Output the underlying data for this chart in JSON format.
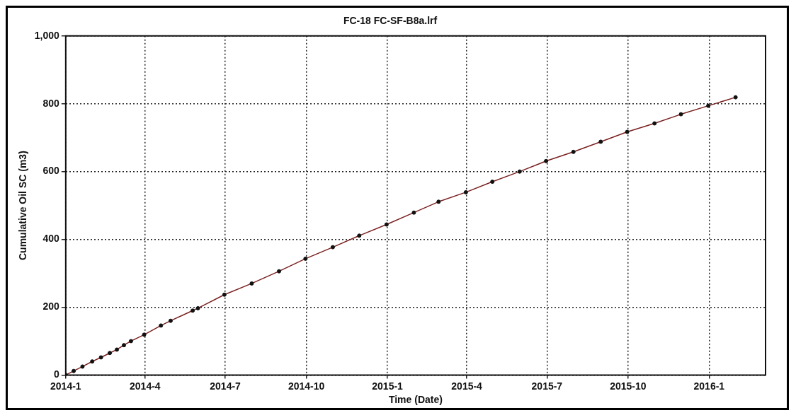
{
  "chart_data": {
    "type": "line",
    "title": "FC-18 FC-SF-B8a.lrf",
    "xlabel": "Time (Date)",
    "ylabel": "Cumulative Oil SC (m3)",
    "x": [
      "2014-01-01",
      "2014-01-10",
      "2014-01-20",
      "2014-01-31",
      "2014-02-10",
      "2014-02-20",
      "2014-02-28",
      "2014-03-08",
      "2014-03-16",
      "2014-03-31",
      "2014-04-19",
      "2014-04-30",
      "2014-05-25",
      "2014-05-31",
      "2014-06-30",
      "2014-07-31",
      "2014-08-31",
      "2014-09-30",
      "2014-10-31",
      "2014-11-30",
      "2014-12-31",
      "2015-01-31",
      "2015-02-28",
      "2015-03-31",
      "2015-04-30",
      "2015-05-31",
      "2015-06-30",
      "2015-07-31",
      "2015-08-31",
      "2015-09-30",
      "2015-10-31",
      "2015-11-30",
      "2015-12-31",
      "2016-01-31"
    ],
    "series": [
      {
        "color": "#7a2020",
        "marker": "none",
        "values": [
          0,
          12,
          25,
          40,
          52,
          65,
          75,
          88,
          100,
          119,
          146,
          160,
          190,
          197,
          237,
          270,
          306,
          343,
          377,
          411,
          444,
          479,
          511,
          539,
          570,
          600,
          631,
          658,
          688,
          717,
          742,
          769,
          794,
          819
        ]
      },
      {
        "type": "scatter",
        "color": "#111111",
        "marker": "circle",
        "values": [
          0,
          12,
          25,
          40,
          52,
          65,
          75,
          88,
          100,
          119,
          146,
          160,
          190,
          197,
          237,
          270,
          306,
          343,
          377,
          411,
          444,
          479,
          511,
          539,
          570,
          600,
          631,
          658,
          688,
          717,
          742,
          769,
          794,
          819
        ]
      }
    ],
    "xlim": [
      "2014-01-01",
      "2016-03-05"
    ],
    "xticks": [
      {
        "value": "2014-01-01",
        "label": "2014-1"
      },
      {
        "value": "2014-04-01",
        "label": "2014-4"
      },
      {
        "value": "2014-07-01",
        "label": "2014-7"
      },
      {
        "value": "2014-10-01",
        "label": "2014-10"
      },
      {
        "value": "2015-01-01",
        "label": "2015-1"
      },
      {
        "value": "2015-04-01",
        "label": "2015-4"
      },
      {
        "value": "2015-07-01",
        "label": "2015-7"
      },
      {
        "value": "2015-10-01",
        "label": "2015-10"
      },
      {
        "value": "2016-01-01",
        "label": "2016-1"
      }
    ],
    "ylim": [
      0,
      1000
    ],
    "yticks": [
      0,
      200,
      400,
      600,
      800,
      {
        "value": 1000,
        "label": "1,000"
      }
    ],
    "grid": true,
    "legend": false
  }
}
